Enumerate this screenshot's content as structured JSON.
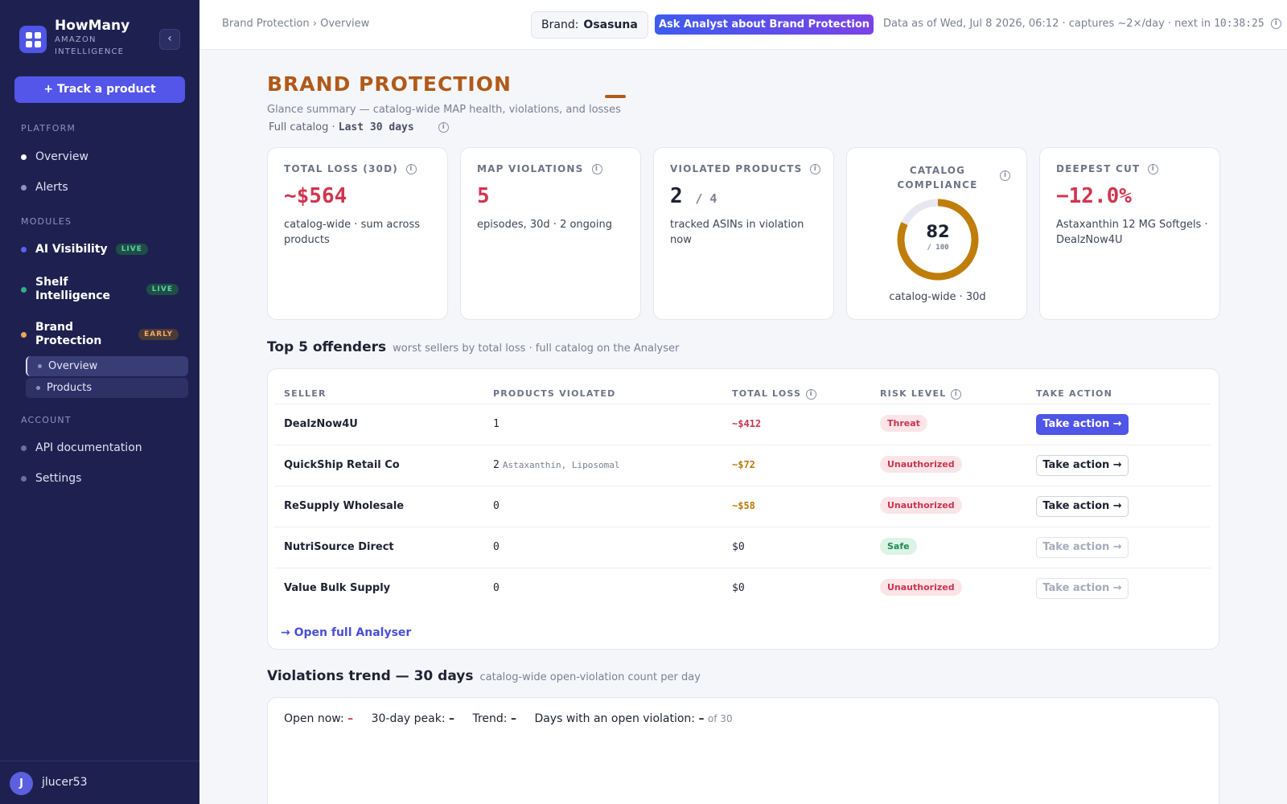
{
  "app": {
    "name": "HowMany",
    "subtitle": "AMAZON INTELLIGENCE",
    "collapse_glyph": "‹",
    "track_button": "+ Track a product"
  },
  "sidebar": {
    "platform_label": "PLATFORM",
    "platform_items": [
      {
        "label": "Overview",
        "dot_color": "#ffffff"
      },
      {
        "label": "Alerts",
        "dot_color": "#8f93bb"
      }
    ],
    "modules_label": "MODULES",
    "modules": [
      {
        "label": "AI Visibility",
        "badge": "LIVE",
        "dot_color": "#5b62f0"
      },
      {
        "label": "Shelf Intelligence",
        "badge": "LIVE",
        "dot_color": "#2fb27d"
      },
      {
        "label": "Brand Protection",
        "badge": "EARLY",
        "dot_color": "#f0a45a"
      }
    ],
    "brand_subnav": [
      "Overview",
      "Products"
    ],
    "account_label": "ACCOUNT",
    "account_items": [
      {
        "label": "API documentation",
        "dot_color": "#6d7199"
      },
      {
        "label": "Settings",
        "dot_color": "#6d7199"
      }
    ],
    "user": {
      "initial": "J",
      "name": "jlucer53"
    }
  },
  "topbar": {
    "breadcrumb": "Brand Protection › Overview",
    "brand_label": "Brand:",
    "brand_value": "Osasuna",
    "ask_button": "Ask Analyst about Brand Protection",
    "data_as_of": "Data as of Wed, Jul 8 2026, 06:12 · captures ~2×/day · next in ",
    "countdown": "10:38:25"
  },
  "page": {
    "title": "BRAND PROTECTION",
    "subtitle": "Glance summary — catalog-wide MAP health, violations, and losses",
    "scope_prefix": "Full catalog · ",
    "scope_range": "Last 30 days"
  },
  "kpis": {
    "total_loss": {
      "label": "TOTAL LOSS (30D)",
      "value": "~$564",
      "desc": "catalog-wide · sum across products"
    },
    "map_violations": {
      "label": "MAP VIOLATIONS",
      "value": "5",
      "desc": "episodes, 30d · 2 ongoing"
    },
    "violated_products": {
      "label": "VIOLATED PRODUCTS",
      "value": "2",
      "suffix": "/ 4",
      "desc": "tracked ASINs in violation now"
    },
    "compliance": {
      "label": "CATALOG COMPLIANCE",
      "score": 82,
      "score_text": "82",
      "max_text": "/ 100",
      "caption": "catalog-wide · 30d",
      "ring_color": "#bf7d0a"
    },
    "deepest_cut": {
      "label": "DEEPEST CUT",
      "value": "−12.0%",
      "desc": "Astaxanthin 12 MG Softgels · DealzNow4U"
    }
  },
  "offenders": {
    "title": "Top 5 offenders",
    "subtitle": "worst sellers by total loss · full catalog on the Analyser",
    "columns": [
      "SELLER",
      "PRODUCTS VIOLATED",
      "TOTAL LOSS",
      "RISK LEVEL",
      "TAKE ACTION"
    ],
    "rows": [
      {
        "seller": "DealzNow4U",
        "products": "1",
        "products_detail": "",
        "loss": "~$412",
        "risk": "Threat",
        "action": "Take action →"
      },
      {
        "seller": "QuickShip Retail Co",
        "products": "2",
        "products_detail": "Astaxanthin, Liposomal",
        "loss": "~$72",
        "risk": "Unauthorized",
        "action": "Take action →"
      },
      {
        "seller": "ReSupply Wholesale",
        "products": "0",
        "products_detail": "",
        "loss": "~$58",
        "risk": "Unauthorized",
        "action": "Take action →"
      },
      {
        "seller": "NutriSource Direct",
        "products": "0",
        "products_detail": "",
        "loss": "$0",
        "risk": "Safe",
        "action": "Take action →"
      },
      {
        "seller": "Value Bulk Supply",
        "products": "0",
        "products_detail": "",
        "loss": "$0",
        "risk": "Unauthorized",
        "action": "Take action →"
      }
    ],
    "open_link": "→ Open full Analyser"
  },
  "trend": {
    "title": "Violations trend — 30 days",
    "subtitle": "catalog-wide open-violation count per day",
    "open_now_label": "Open now:",
    "open_now_value": "–",
    "peak_label": "30-day peak:",
    "peak_value": "–",
    "trend_label": "Trend:",
    "trend_value": "–",
    "days_label": "Days with an open violation:",
    "days_value": "–",
    "days_of": "of 30"
  }
}
